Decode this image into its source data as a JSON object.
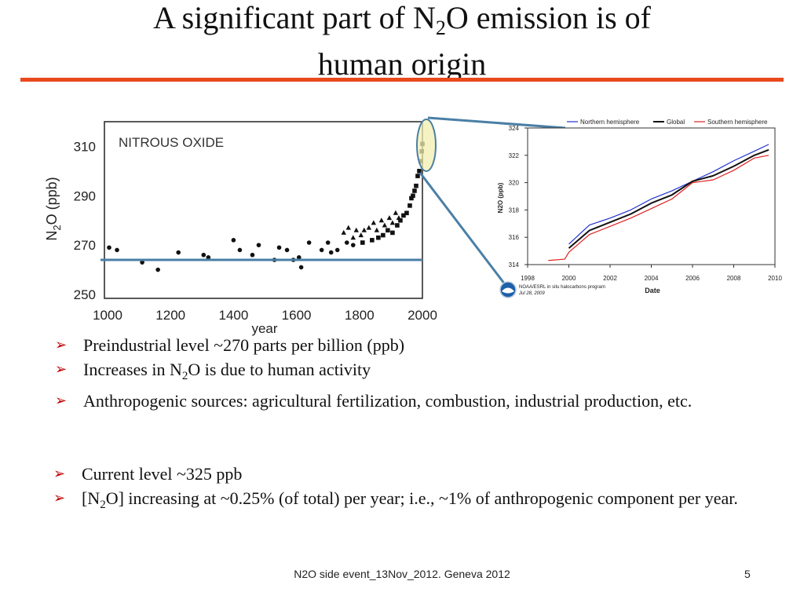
{
  "slide": {
    "title_pre": "A significant part of N",
    "title_sub": "2",
    "title_post": "O emission is of",
    "title_line2": "human origin",
    "accent_color": "#e8491d",
    "footer": "N2O side event_13Nov_2012. Geneva 2012",
    "page_number": "5"
  },
  "bullets_top": [
    {
      "text": "Preindustrial level ~270 parts per billion (ppb)"
    },
    {
      "pre": "Increases in N",
      "sub": "2",
      "post": "O is due to human activity"
    },
    {
      "text": "Anthropogenic sources: agricultural fertilization, combustion, industrial production, etc."
    }
  ],
  "bullets_bottom": [
    {
      "text": "Current level ~325 ppb"
    },
    {
      "pre": "[N",
      "sub": "2",
      "post": "O] increasing at ~0.25% (of total) per year; i.e., ~1% of anthropogenic component per year."
    }
  ],
  "chart_data": [
    {
      "type": "scatter",
      "title": "NITROUS OXIDE",
      "xlabel": "year",
      "ylabel_pre": "N",
      "ylabel_sub": "2",
      "ylabel_post": "O (ppb)",
      "xlim": [
        1000,
        2000
      ],
      "ylim": [
        250,
        320
      ],
      "x_ticks": [
        "1000",
        "1200",
        "1400",
        "1600",
        "1800",
        "2000"
      ],
      "y_ticks": [
        "250",
        "270",
        "290",
        "310"
      ],
      "reference_line": 264,
      "reference_color": "#4a7fa5",
      "series": [
        {
          "marker": "circle",
          "points": [
            [
              1005,
              269
            ],
            [
              1030,
              268
            ],
            [
              1110,
              263
            ],
            [
              1160,
              260
            ],
            [
              1225,
              267
            ],
            [
              1305,
              266
            ],
            [
              1320,
              265
            ],
            [
              1400,
              272
            ],
            [
              1420,
              268
            ],
            [
              1460,
              266
            ],
            [
              1480,
              270
            ],
            [
              1530,
              264
            ],
            [
              1545,
              269
            ],
            [
              1570,
              268
            ],
            [
              1590,
              264
            ],
            [
              1608,
              265
            ],
            [
              1615,
              261
            ],
            [
              1640,
              271
            ],
            [
              1680,
              268
            ],
            [
              1700,
              271
            ],
            [
              1710,
              267
            ],
            [
              1730,
              268
            ],
            [
              1760,
              271
            ],
            [
              1780,
              270
            ]
          ]
        },
        {
          "marker": "triangle",
          "points": [
            [
              1750,
              275
            ],
            [
              1765,
              277
            ],
            [
              1780,
              273
            ],
            [
              1790,
              276
            ],
            [
              1805,
              274
            ],
            [
              1815,
              276
            ],
            [
              1830,
              277
            ],
            [
              1845,
              279
            ],
            [
              1855,
              276
            ],
            [
              1870,
              280
            ],
            [
              1880,
              278
            ],
            [
              1895,
              281
            ],
            [
              1905,
              279
            ],
            [
              1915,
              283
            ],
            [
              1925,
              281
            ]
          ]
        },
        {
          "marker": "square",
          "points": [
            [
              1810,
              271
            ],
            [
              1840,
              272
            ],
            [
              1860,
              273
            ],
            [
              1875,
              274
            ],
            [
              1890,
              276
            ],
            [
              1905,
              275
            ],
            [
              1920,
              278
            ],
            [
              1930,
              280
            ],
            [
              1940,
              282
            ],
            [
              1950,
              283
            ],
            [
              1960,
              286
            ],
            [
              1965,
              289
            ],
            [
              1970,
              290
            ],
            [
              1975,
              292
            ],
            [
              1980,
              294
            ],
            [
              1985,
              298
            ],
            [
              1990,
              300
            ],
            [
              1995,
              304
            ],
            [
              1998,
              308
            ],
            [
              2000,
              311
            ]
          ]
        }
      ]
    },
    {
      "type": "line",
      "xlabel": "Date",
      "ylabel": "N2O (ppb)",
      "xlim": [
        1998,
        2010
      ],
      "ylim": [
        314,
        324
      ],
      "x_ticks": [
        "1998",
        "2000",
        "2002",
        "2004",
        "2006",
        "2008",
        "2010"
      ],
      "y_ticks": [
        "314",
        "316",
        "318",
        "320",
        "322",
        "324"
      ],
      "legend_position": "top",
      "credit_line1": "NOAA/ESRL in situ halocarbons program",
      "credit_line2": "Jul 28, 2009",
      "series": [
        {
          "name": "Northern hemisphere",
          "color": "#2233cc",
          "x": [
            2000,
            2001,
            2002,
            2003,
            2004,
            2005,
            2006,
            2007,
            2008,
            2009,
            2009.7
          ],
          "values": [
            315.5,
            316.9,
            317.4,
            318.0,
            318.8,
            319.4,
            320.1,
            320.8,
            321.6,
            322.3,
            322.8
          ]
        },
        {
          "name": "Global",
          "color": "#111111",
          "x": [
            2000,
            2001,
            2002,
            2003,
            2004,
            2005,
            2006,
            2007,
            2008,
            2009,
            2009.7
          ],
          "values": [
            315.2,
            316.5,
            317.1,
            317.7,
            318.5,
            319.1,
            320.1,
            320.5,
            321.2,
            322.0,
            322.4
          ]
        },
        {
          "name": "Southern hemisphere",
          "color": "#dd2222",
          "x": [
            1999,
            1999.8,
            2000,
            2001,
            2002,
            2003,
            2004,
            2005,
            2006,
            2007,
            2008,
            2009,
            2009.7
          ],
          "values": [
            314.3,
            314.4,
            314.9,
            316.2,
            316.8,
            317.4,
            318.1,
            318.8,
            320.0,
            320.2,
            320.9,
            321.8,
            322.0
          ]
        }
      ]
    }
  ]
}
